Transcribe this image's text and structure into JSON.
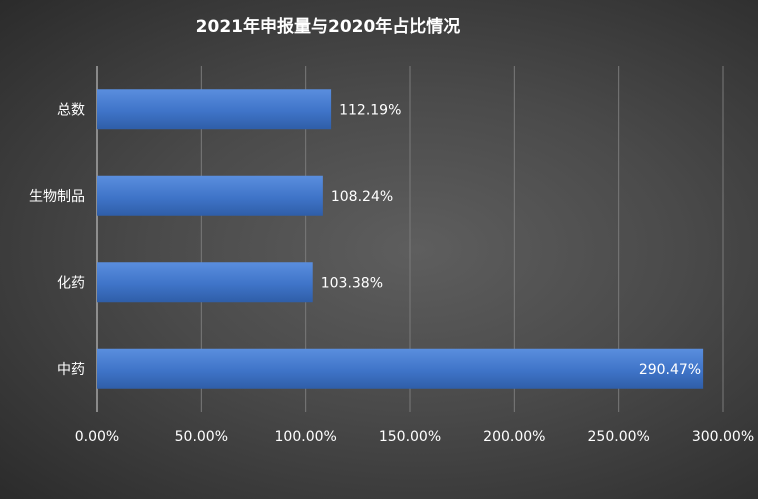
{
  "chart_data": {
    "type": "bar",
    "orientation": "horizontal",
    "title": "2021年申报量与2020年占比情况",
    "categories": [
      "总数",
      "生物制品",
      "化药",
      "中药"
    ],
    "values": [
      112.19,
      108.24,
      103.38,
      290.47
    ],
    "data_labels": [
      "112.19%",
      "108.24%",
      "103.38%",
      "290.47%"
    ],
    "x_ticks": [
      0,
      50,
      100,
      150,
      200,
      250,
      300
    ],
    "x_tick_labels": [
      "0.00%",
      "50.00%",
      "100.00%",
      "150.00%",
      "200.00%",
      "250.00%",
      "300.00%"
    ],
    "xlim": [
      0,
      300
    ],
    "xlabel": "",
    "ylabel": "",
    "grid": "vertical",
    "legend": "none",
    "bar_color": "#4a7fd4"
  }
}
